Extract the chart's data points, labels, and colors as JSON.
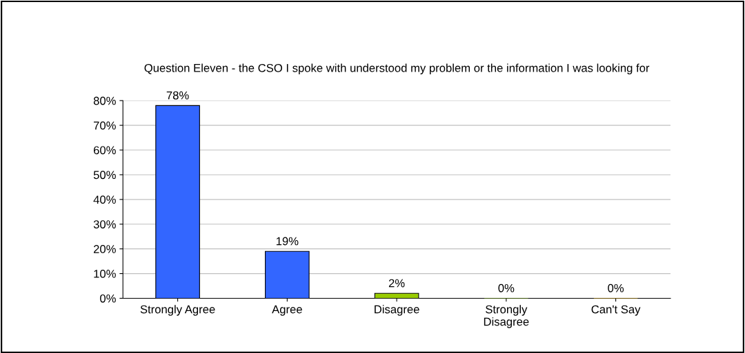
{
  "chart_data": {
    "type": "bar",
    "title": "Question Eleven - the CSO I spoke with understood my problem or the information I was looking for",
    "categories": [
      "Strongly Agree",
      "Agree",
      "Disagree",
      "Strongly\nDisagree",
      "Can't Say"
    ],
    "values": [
      78,
      19,
      2,
      0,
      0
    ],
    "colors": [
      "#3366ff",
      "#3366ff",
      "#99cc00",
      "#669900",
      "#cc9900"
    ],
    "value_labels": [
      "78%",
      "19%",
      "2%",
      "0%",
      "0%"
    ],
    "ylim": [
      0,
      80
    ],
    "yticks": [
      {
        "value": 0,
        "label": "0%"
      },
      {
        "value": 10,
        "label": "10%"
      },
      {
        "value": 20,
        "label": "20%"
      },
      {
        "value": 30,
        "label": "30%"
      },
      {
        "value": 40,
        "label": "40%"
      },
      {
        "value": 50,
        "label": "50%"
      },
      {
        "value": 60,
        "label": "60%"
      },
      {
        "value": 70,
        "label": "70%"
      },
      {
        "value": 80,
        "label": "80%"
      }
    ],
    "grid": "y",
    "legend": false
  }
}
